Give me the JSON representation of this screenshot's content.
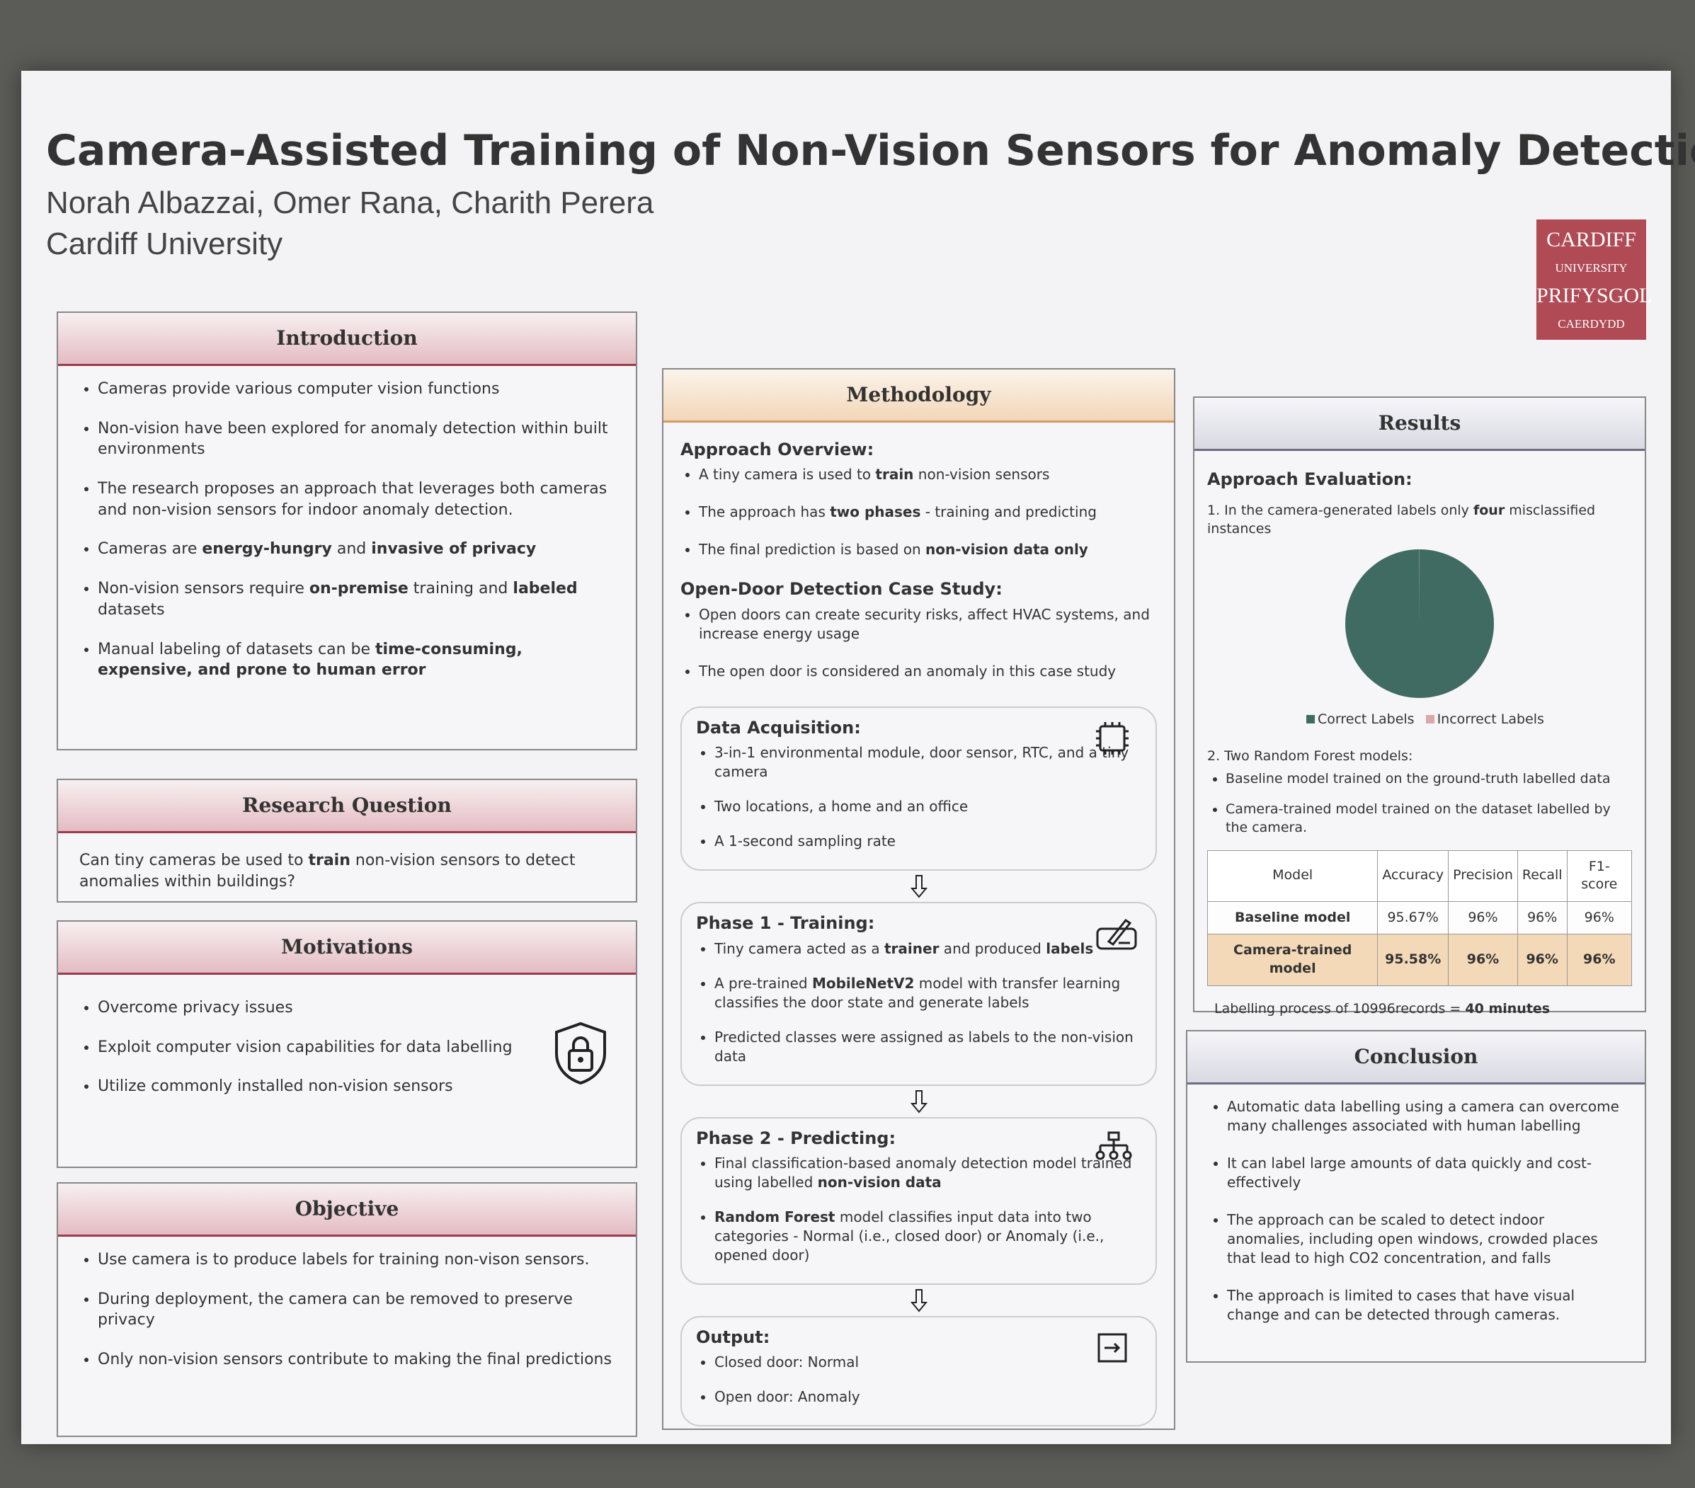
{
  "header": {
    "title": "Camera-Assisted Training of Non-Vision Sensors for Anomaly Detection",
    "authors": "Norah Albazzai, Omer Rana, Charith Perera",
    "affiliation": "Cardiff University",
    "logo": [
      "CARDIFF",
      "UNIVERSITY",
      "PRIFYSGOL",
      "CAERDYDD"
    ]
  },
  "introduction": {
    "heading": "Introduction",
    "bullets": [
      [
        "Cameras provide various computer vision functions"
      ],
      [
        "Non-vision have been explored for anomaly detection within built environments"
      ],
      [
        "The research proposes an approach that leverages both cameras and non-vision sensors for indoor anomaly detection."
      ],
      [
        "Cameras are ",
        {
          "text": "energy-hungry",
          "bold": true
        },
        " and ",
        {
          "text": "invasive of privacy",
          "bold": true
        }
      ],
      [
        "Non-vision sensors require ",
        {
          "text": "on-premise",
          "bold": true
        },
        " training and ",
        {
          "text": "labeled",
          "bold": true
        },
        " datasets"
      ],
      [
        "Manual labeling of datasets can be ",
        {
          "text": "time-consuming, expensive, and prone to human error",
          "bold": true
        }
      ]
    ]
  },
  "research_question": {
    "heading": "Research Question",
    "text": [
      "Can tiny cameras be used to ",
      {
        "text": "train",
        "bold": true
      },
      " non-vision sensors to detect anomalies within buildings?"
    ]
  },
  "motivations": {
    "heading": "Motivations",
    "bullets": [
      [
        "Overcome privacy issues"
      ],
      [
        "Exploit computer vision capabilities for data labelling"
      ],
      [
        "Utilize commonly installed non-vision sensors"
      ]
    ]
  },
  "objective": {
    "heading": "Objective",
    "bullets": [
      [
        "Use camera is to produce labels for training non-vison sensors."
      ],
      [
        "During deployment, the camera can be removed to preserve privacy"
      ],
      [
        "Only non-vision sensors contribute to making the final predictions"
      ]
    ]
  },
  "methodology": {
    "heading": "Methodology",
    "blocks": [
      {
        "title": "Approach Overview:",
        "bullets": [
          [
            "A tiny camera is used to ",
            {
              "text": "train",
              "bold": true
            },
            " non-vision sensors"
          ],
          [
            "The approach has ",
            {
              "text": "two phases",
              "bold": true
            },
            " - training and predicting"
          ],
          [
            "The final prediction is based on ",
            {
              "text": "non-vision data only",
              "bold": true
            }
          ]
        ]
      },
      {
        "title": "Open-Door Detection Case Study:",
        "bullets": [
          [
            "Open doors can create security risks, affect HVAC systems, and increase energy usage"
          ],
          [
            "The open door is considered an anomaly in this case study"
          ]
        ]
      }
    ],
    "boxes": [
      {
        "title": "Data Acquisition:",
        "bullets": [
          [
            "3-in-1 environmental module, door sensor, RTC, and a tiny camera"
          ],
          [
            "Two locations, a home and an office"
          ],
          [
            "A 1-second sampling rate"
          ]
        ]
      },
      {
        "title": "Phase 1 - Training:",
        "bullets": [
          [
            "Tiny camera acted as a ",
            {
              "text": "trainer",
              "bold": true
            },
            " and produced ",
            {
              "text": "labels",
              "bold": true
            }
          ],
          [
            "A pre-trained ",
            {
              "text": "MobileNetV2",
              "bold": true
            },
            " model with transfer learning classifies the door state and generate labels"
          ],
          [
            "Predicted classes were assigned as labels to the non-vision data"
          ]
        ]
      },
      {
        "title": "Phase 2 - Predicting:",
        "bullets": [
          [
            "Final classification-based anomaly detection model trained using labelled ",
            {
              "text": "non-vision data",
              "bold": true
            }
          ],
          [
            {
              "text": "Random Forest",
              "bold": true
            },
            " model classifies input data into two categories - Normal (i.e., closed door) or Anomaly (i.e., opened door)"
          ]
        ]
      },
      {
        "title": "Output:",
        "bullets": [
          [
            "Closed door: Normal"
          ],
          [
            "Open door: Anomaly"
          ]
        ]
      }
    ]
  },
  "results": {
    "heading": "Results",
    "subheading": "Approach Evaluation:",
    "item1": [
      "1.  In the camera-generated labels only ",
      {
        "text": "four",
        "bold": true
      },
      " misclassified instances"
    ],
    "chart": {
      "type": "pie",
      "categories": [
        "Correct Labels",
        "Incorrect Labels"
      ],
      "values": [
        10992,
        4
      ],
      "colors": [
        "#3f6b62",
        "#dba8a8"
      ]
    },
    "item2": "2.  Two Random Forest models:",
    "item2_bullets": [
      [
        "Baseline model trained on the ground-truth labelled data"
      ],
      [
        "Camera-trained model trained on the dataset labelled by the camera."
      ]
    ],
    "table": {
      "header": [
        "Model",
        "Accuracy",
        "Precision",
        "Recall",
        "F1-score"
      ],
      "rows": [
        [
          "Baseline model",
          "95.67%",
          "96%",
          "96%",
          "96%"
        ],
        [
          "Camera-trained model",
          "95.58%",
          "96%",
          "96%",
          "96%"
        ]
      ]
    },
    "note": [
      "Labelling process of 10996records  = ",
      {
        "text": "40 minutes",
        "bold": true
      }
    ]
  },
  "conclusion": {
    "heading": "Conclusion",
    "bullets": [
      [
        "Automatic data labelling using a camera can overcome many challenges associated with human labelling"
      ],
      [
        "It can label large amounts of data quickly and cost-effectively"
      ],
      [
        "The approach can be scaled to detect indoor anomalies, including open windows, crowded places that lead to high CO2 concentration, and falls"
      ],
      [
        "The approach is limited to cases that have visual change and can be detected through cameras."
      ]
    ]
  }
}
